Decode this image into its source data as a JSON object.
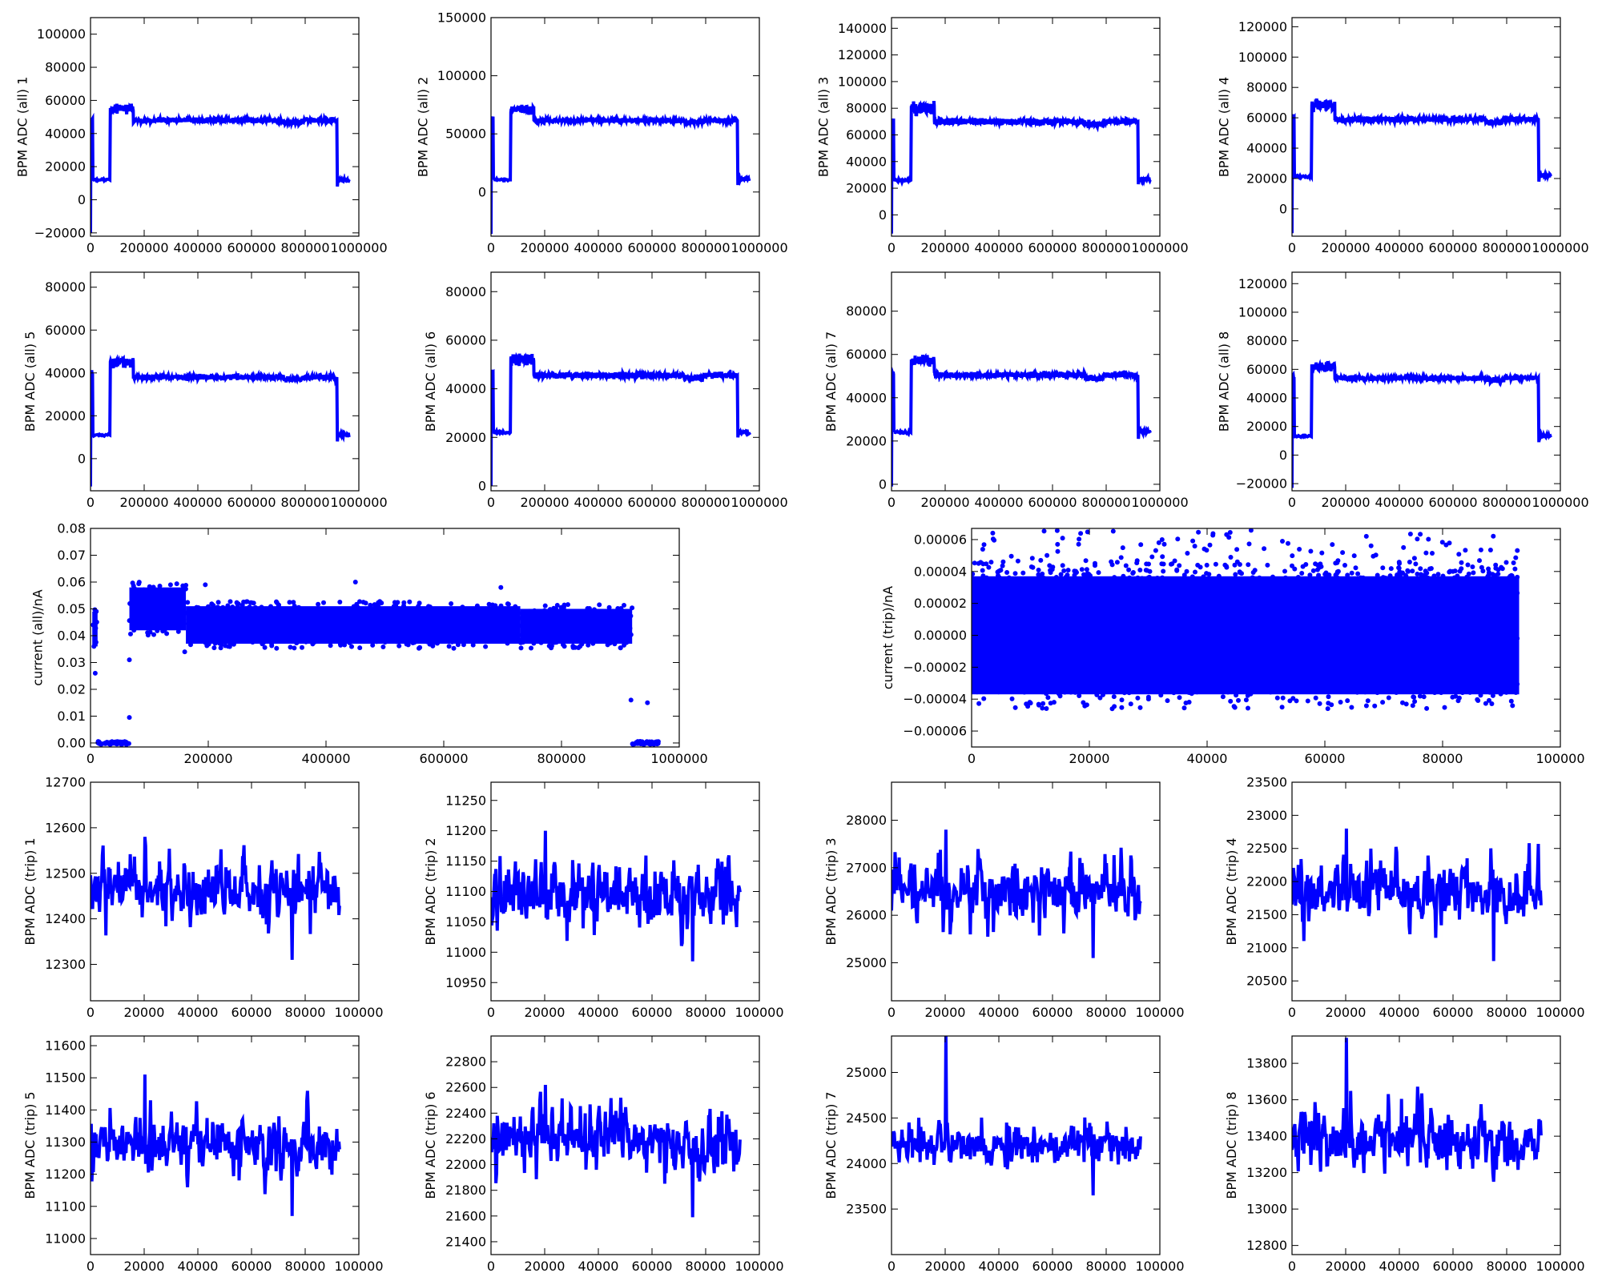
{
  "figure": {
    "line_color": "#0000ff"
  },
  "chart_data": [
    {
      "id": "all1",
      "type": "line",
      "ylabel": "BPM ADC (all) 1",
      "xlim": [
        0,
        1000000
      ],
      "ylim": [
        -22000,
        110000
      ],
      "xticks": [
        0,
        200000,
        400000,
        600000,
        800000,
        1000000
      ],
      "xtick_labels": [
        "0",
        "200000",
        "400000",
        "600000",
        "800000",
        "1000000"
      ],
      "yticks": [
        -20000,
        0,
        20000,
        40000,
        60000,
        80000,
        100000
      ],
      "ytick_labels": [
        "−20000",
        "0",
        "20000",
        "40000",
        "60000",
        "80000",
        "100000"
      ],
      "shape": {
        "start": 48000,
        "pre": 12000,
        "peak": 55000,
        "plateau": 48000,
        "dip": 46500,
        "drop": 8000,
        "post": 12000,
        "noise": 1200
      }
    },
    {
      "id": "all2",
      "type": "line",
      "ylabel": "BPM ADC (all) 2",
      "xlim": [
        0,
        1000000
      ],
      "ylim": [
        -38000,
        150000
      ],
      "xticks": [
        0,
        200000,
        400000,
        600000,
        800000,
        1000000
      ],
      "xtick_labels": [
        "0",
        "200000",
        "400000",
        "600000",
        "800000",
        "1000000"
      ],
      "yticks": [
        0,
        50000,
        100000,
        150000
      ],
      "ytick_labels": [
        "0",
        "50000",
        "100000",
        "150000"
      ],
      "shape": {
        "start": 63000,
        "pre": 10500,
        "peak": 71000,
        "plateau": 61500,
        "dip": 60000,
        "drop": 6000,
        "post": 11000,
        "noise": 1500
      }
    },
    {
      "id": "all3",
      "type": "line",
      "ylabel": "BPM ADC (all) 3",
      "xlim": [
        0,
        1000000
      ],
      "ylim": [
        -16000,
        148000
      ],
      "xticks": [
        0,
        200000,
        400000,
        600000,
        800000,
        1000000
      ],
      "xtick_labels": [
        "0",
        "200000",
        "400000",
        "600000",
        "800000",
        "1000000"
      ],
      "yticks": [
        0,
        20000,
        40000,
        60000,
        80000,
        100000,
        120000,
        140000
      ],
      "ytick_labels": [
        "0",
        "20000",
        "40000",
        "60000",
        "80000",
        "100000",
        "120000",
        "140000"
      ],
      "shape": {
        "start": 70000,
        "pre": 26000,
        "peak": 80000,
        "plateau": 70000,
        "dip": 68000,
        "drop": 23000,
        "post": 26500,
        "noise": 1800
      }
    },
    {
      "id": "all4",
      "type": "line",
      "ylabel": "BPM ADC (all) 4",
      "xlim": [
        0,
        1000000
      ],
      "ylim": [
        -18000,
        126000
      ],
      "xticks": [
        0,
        200000,
        400000,
        600000,
        800000,
        1000000
      ],
      "xtick_labels": [
        "0",
        "200000",
        "400000",
        "600000",
        "800000",
        "1000000"
      ],
      "yticks": [
        0,
        20000,
        40000,
        60000,
        80000,
        100000,
        120000
      ],
      "ytick_labels": [
        "0",
        "20000",
        "40000",
        "60000",
        "80000",
        "100000",
        "120000"
      ],
      "shape": {
        "start": 60000,
        "pre": 21500,
        "peak": 68000,
        "plateau": 59000,
        "dip": 57000,
        "drop": 18000,
        "post": 22000,
        "noise": 1500
      }
    },
    {
      "id": "all5",
      "type": "line",
      "ylabel": "BPM ADC (all) 5",
      "xlim": [
        0,
        1000000
      ],
      "ylim": [
        -15000,
        87000
      ],
      "xticks": [
        0,
        200000,
        400000,
        600000,
        800000,
        1000000
      ],
      "xtick_labels": [
        "0",
        "200000",
        "400000",
        "600000",
        "800000",
        "1000000"
      ],
      "yticks": [
        0,
        20000,
        40000,
        60000,
        80000
      ],
      "ytick_labels": [
        "0",
        "20000",
        "40000",
        "60000",
        "80000"
      ],
      "shape": {
        "start": 40000,
        "pre": 11000,
        "peak": 45000,
        "plateau": 38000,
        "dip": 37000,
        "drop": 8000,
        "post": 11000,
        "noise": 1000
      }
    },
    {
      "id": "all6",
      "type": "line",
      "ylabel": "BPM ADC (all) 6",
      "xlim": [
        0,
        1000000
      ],
      "ylim": [
        -2000,
        88000
      ],
      "xticks": [
        0,
        200000,
        400000,
        600000,
        800000,
        1000000
      ],
      "xtick_labels": [
        "0",
        "200000",
        "400000",
        "600000",
        "800000",
        "1000000"
      ],
      "yticks": [
        0,
        20000,
        40000,
        60000,
        80000
      ],
      "ytick_labels": [
        "0",
        "20000",
        "40000",
        "60000",
        "80000"
      ],
      "shape": {
        "start": 47000,
        "pre": 22000,
        "peak": 52000,
        "plateau": 45500,
        "dip": 44500,
        "drop": 20000,
        "post": 22000,
        "noise": 1000
      }
    },
    {
      "id": "all7",
      "type": "line",
      "ylabel": "BPM ADC (all) 7",
      "xlim": [
        0,
        1000000
      ],
      "ylim": [
        -3000,
        98000
      ],
      "xticks": [
        0,
        200000,
        400000,
        600000,
        800000,
        1000000
      ],
      "xtick_labels": [
        "0",
        "200000",
        "400000",
        "600000",
        "800000",
        "1000000"
      ],
      "yticks": [
        0,
        20000,
        40000,
        60000,
        80000
      ],
      "ytick_labels": [
        "0",
        "20000",
        "40000",
        "60000",
        "80000"
      ],
      "shape": {
        "start": 50000,
        "pre": 24000,
        "peak": 57000,
        "plateau": 50500,
        "dip": 49000,
        "drop": 21000,
        "post": 24500,
        "noise": 1100
      }
    },
    {
      "id": "all8",
      "type": "line",
      "ylabel": "BPM ADC (all) 8",
      "xlim": [
        0,
        1000000
      ],
      "ylim": [
        -25000,
        128000
      ],
      "xticks": [
        0,
        200000,
        400000,
        600000,
        800000,
        1000000
      ],
      "xtick_labels": [
        "0",
        "200000",
        "400000",
        "600000",
        "800000",
        "1000000"
      ],
      "yticks": [
        -20000,
        0,
        20000,
        40000,
        60000,
        80000,
        100000,
        120000
      ],
      "ytick_labels": [
        "−20000",
        "0",
        "20000",
        "40000",
        "60000",
        "80000",
        "100000",
        "120000"
      ],
      "shape": {
        "start": 55000,
        "pre": 13000,
        "peak": 62000,
        "plateau": 54000,
        "dip": 52500,
        "drop": 9000,
        "post": 13500,
        "noise": 1300
      }
    },
    {
      "id": "currall",
      "type": "scatter",
      "ylabel": "current (all)/nA",
      "xlim": [
        0,
        1000000
      ],
      "ylim": [
        -0.0015,
        0.08
      ],
      "xticks": [
        0,
        200000,
        400000,
        600000,
        800000,
        1000000
      ],
      "xtick_labels": [
        "0",
        "200000",
        "400000",
        "600000",
        "800000",
        "1000000"
      ],
      "yticks": [
        0,
        0.01,
        0.02,
        0.03,
        0.04,
        0.05,
        0.06,
        0.07,
        0.08
      ],
      "ytick_labels": [
        "0.00",
        "0.01",
        "0.02",
        "0.03",
        "0.04",
        "0.05",
        "0.06",
        "0.07",
        "0.08"
      ],
      "bands": [
        {
          "x": [
            3000,
            12000
          ],
          "y": [
            0.036,
            0.049
          ]
        },
        {
          "x": [
            12000,
            66000
          ],
          "y": [
            -0.0005,
            0.0005
          ]
        },
        {
          "x": [
            66000,
            162000
          ],
          "y": [
            0.042,
            0.058
          ]
        },
        {
          "x": [
            162000,
            730000
          ],
          "y": [
            0.037,
            0.051
          ]
        },
        {
          "x": [
            730000,
            920000
          ],
          "y": [
            0.037,
            0.05
          ]
        },
        {
          "x": [
            920000,
            965000
          ],
          "y": [
            -0.0005,
            0.0005
          ]
        }
      ],
      "outliers": [
        [
          8000,
          0.026
        ],
        [
          66000,
          0.031
        ],
        [
          66000,
          0.0095
        ],
        [
          160000,
          0.034
        ],
        [
          195000,
          0.059
        ],
        [
          450000,
          0.06
        ],
        [
          697000,
          0.058
        ],
        [
          918000,
          0.016
        ],
        [
          946000,
          0.015
        ]
      ]
    },
    {
      "id": "currtrip",
      "type": "scatter",
      "ylabel": "current (trip)/nA",
      "xlim": [
        0,
        100000
      ],
      "ylim": [
        -7e-05,
        6.7e-05
      ],
      "xticks": [
        0,
        20000,
        40000,
        60000,
        80000,
        100000
      ],
      "xtick_labels": [
        "0",
        "20000",
        "40000",
        "60000",
        "80000",
        "100000"
      ],
      "yticks": [
        -6e-05,
        -4e-05,
        -2e-05,
        0,
        2e-05,
        4e-05,
        6e-05
      ],
      "ytick_labels": [
        "−0.00006",
        "−0.00004",
        "−0.00002",
        "0.00000",
        "0.00002",
        "0.00004",
        "0.00006"
      ],
      "bands": [
        {
          "x": [
            0,
            93000
          ],
          "y": [
            -3.7e-05,
            3.7e-05
          ]
        }
      ],
      "outlier_range": {
        "x": [
          0,
          93000
        ],
        "y": [
          -6.8e-05,
          6.6e-05
        ]
      }
    },
    {
      "id": "trip1",
      "type": "line",
      "ylabel": "BPM ADC (trip) 1",
      "xlim": [
        0,
        100000
      ],
      "ylim": [
        12220,
        12700
      ],
      "xticks": [
        0,
        20000,
        40000,
        60000,
        80000,
        100000
      ],
      "xtick_labels": [
        "0",
        "20000",
        "40000",
        "60000",
        "80000",
        "100000"
      ],
      "yticks": [
        12300,
        12400,
        12500,
        12600,
        12700
      ],
      "ytick_labels": [
        "12300",
        "12400",
        "12500",
        "12600",
        "12700"
      ],
      "x_end": 93000,
      "mean": 12460,
      "std": 45,
      "spike_max": 12580,
      "spike_min": 12310
    },
    {
      "id": "trip2",
      "type": "line",
      "ylabel": "BPM ADC (trip) 2",
      "xlim": [
        0,
        100000
      ],
      "ylim": [
        10920,
        11280
      ],
      "xticks": [
        0,
        20000,
        40000,
        60000,
        80000,
        100000
      ],
      "xtick_labels": [
        "0",
        "20000",
        "40000",
        "60000",
        "80000",
        "100000"
      ],
      "yticks": [
        10950,
        11000,
        11050,
        11100,
        11150,
        11200,
        11250
      ],
      "ytick_labels": [
        "10950",
        "11000",
        "11050",
        "11100",
        "11150",
        "11200",
        "11250"
      ],
      "x_end": 93000,
      "mean": 11100,
      "std": 35,
      "spike_max": 11200,
      "spike_min": 10985
    },
    {
      "id": "trip3",
      "type": "line",
      "ylabel": "BPM ADC (trip) 3",
      "xlim": [
        0,
        100000
      ],
      "ylim": [
        24200,
        28800
      ],
      "xticks": [
        0,
        20000,
        40000,
        60000,
        80000,
        100000
      ],
      "xtick_labels": [
        "0",
        "20000",
        "40000",
        "60000",
        "80000",
        "100000"
      ],
      "yticks": [
        25000,
        26000,
        27000,
        28000
      ],
      "ytick_labels": [
        "25000",
        "26000",
        "27000",
        "28000"
      ],
      "x_end": 93000,
      "mean": 26500,
      "std": 400,
      "spike_max": 27800,
      "spike_min": 25100
    },
    {
      "id": "trip4",
      "type": "line",
      "ylabel": "BPM ADC (trip) 4",
      "xlim": [
        0,
        100000
      ],
      "ylim": [
        20200,
        23500
      ],
      "xticks": [
        0,
        20000,
        40000,
        60000,
        80000,
        100000
      ],
      "xtick_labels": [
        "0",
        "20000",
        "40000",
        "60000",
        "80000",
        "100000"
      ],
      "yticks": [
        20500,
        21000,
        21500,
        22000,
        22500,
        23000,
        23500
      ],
      "ytick_labels": [
        "20500",
        "21000",
        "21500",
        "22000",
        "22500",
        "23000",
        "23500"
      ],
      "x_end": 93000,
      "mean": 21850,
      "std": 300,
      "spike_max": 22800,
      "spike_min": 20800
    },
    {
      "id": "trip5",
      "type": "line",
      "ylabel": "BPM ADC (trip) 5",
      "xlim": [
        0,
        100000
      ],
      "ylim": [
        10950,
        11630
      ],
      "xticks": [
        0,
        20000,
        40000,
        60000,
        80000,
        100000
      ],
      "xtick_labels": [
        "0",
        "20000",
        "40000",
        "60000",
        "80000",
        "100000"
      ],
      "yticks": [
        11000,
        11100,
        11200,
        11300,
        11400,
        11500,
        11600
      ],
      "ytick_labels": [
        "11000",
        "11100",
        "11200",
        "11300",
        "11400",
        "11500",
        "11600"
      ],
      "x_end": 93000,
      "mean": 11290,
      "std": 55,
      "spike_max": 11510,
      "spike_min": 11070
    },
    {
      "id": "trip6",
      "type": "line",
      "ylabel": "BPM ADC (trip) 6",
      "xlim": [
        0,
        100000
      ],
      "ylim": [
        21300,
        23000
      ],
      "xticks": [
        0,
        20000,
        40000,
        60000,
        80000,
        100000
      ],
      "xtick_labels": [
        "0",
        "20000",
        "40000",
        "60000",
        "80000",
        "100000"
      ],
      "yticks": [
        21400,
        21600,
        21800,
        22000,
        22200,
        22400,
        22600,
        22800
      ],
      "ytick_labels": [
        "21400",
        "21600",
        "21800",
        "22000",
        "22200",
        "22400",
        "22600",
        "22800"
      ],
      "x_end": 93000,
      "mean": 22200,
      "std": 150,
      "spike_max": 22620,
      "spike_min": 21590
    },
    {
      "id": "trip7",
      "type": "line",
      "ylabel": "BPM ADC (trip) 7",
      "xlim": [
        0,
        100000
      ],
      "ylim": [
        23000,
        25400
      ],
      "xticks": [
        0,
        20000,
        40000,
        60000,
        80000,
        100000
      ],
      "xtick_labels": [
        "0",
        "20000",
        "40000",
        "60000",
        "80000",
        "100000"
      ],
      "yticks": [
        23500,
        24000,
        24500,
        25000
      ],
      "ytick_labels": [
        "23500",
        "24000",
        "24500",
        "25000"
      ],
      "x_end": 93000,
      "mean": 24200,
      "std": 150,
      "spike_max": 25400,
      "spike_min": 23650
    },
    {
      "id": "trip8",
      "type": "line",
      "ylabel": "BPM ADC (trip) 8",
      "xlim": [
        0,
        100000
      ],
      "ylim": [
        12750,
        13950
      ],
      "xticks": [
        0,
        20000,
        40000,
        60000,
        80000,
        100000
      ],
      "xtick_labels": [
        "0",
        "20000",
        "40000",
        "60000",
        "80000",
        "100000"
      ],
      "yticks": [
        12800,
        13000,
        13200,
        13400,
        13600,
        13800
      ],
      "ytick_labels": [
        "12800",
        "13000",
        "13200",
        "13400",
        "13600",
        "13800"
      ],
      "x_end": 93000,
      "mean": 13380,
      "std": 110,
      "spike_max": 13940,
      "spike_min": 13150
    }
  ]
}
